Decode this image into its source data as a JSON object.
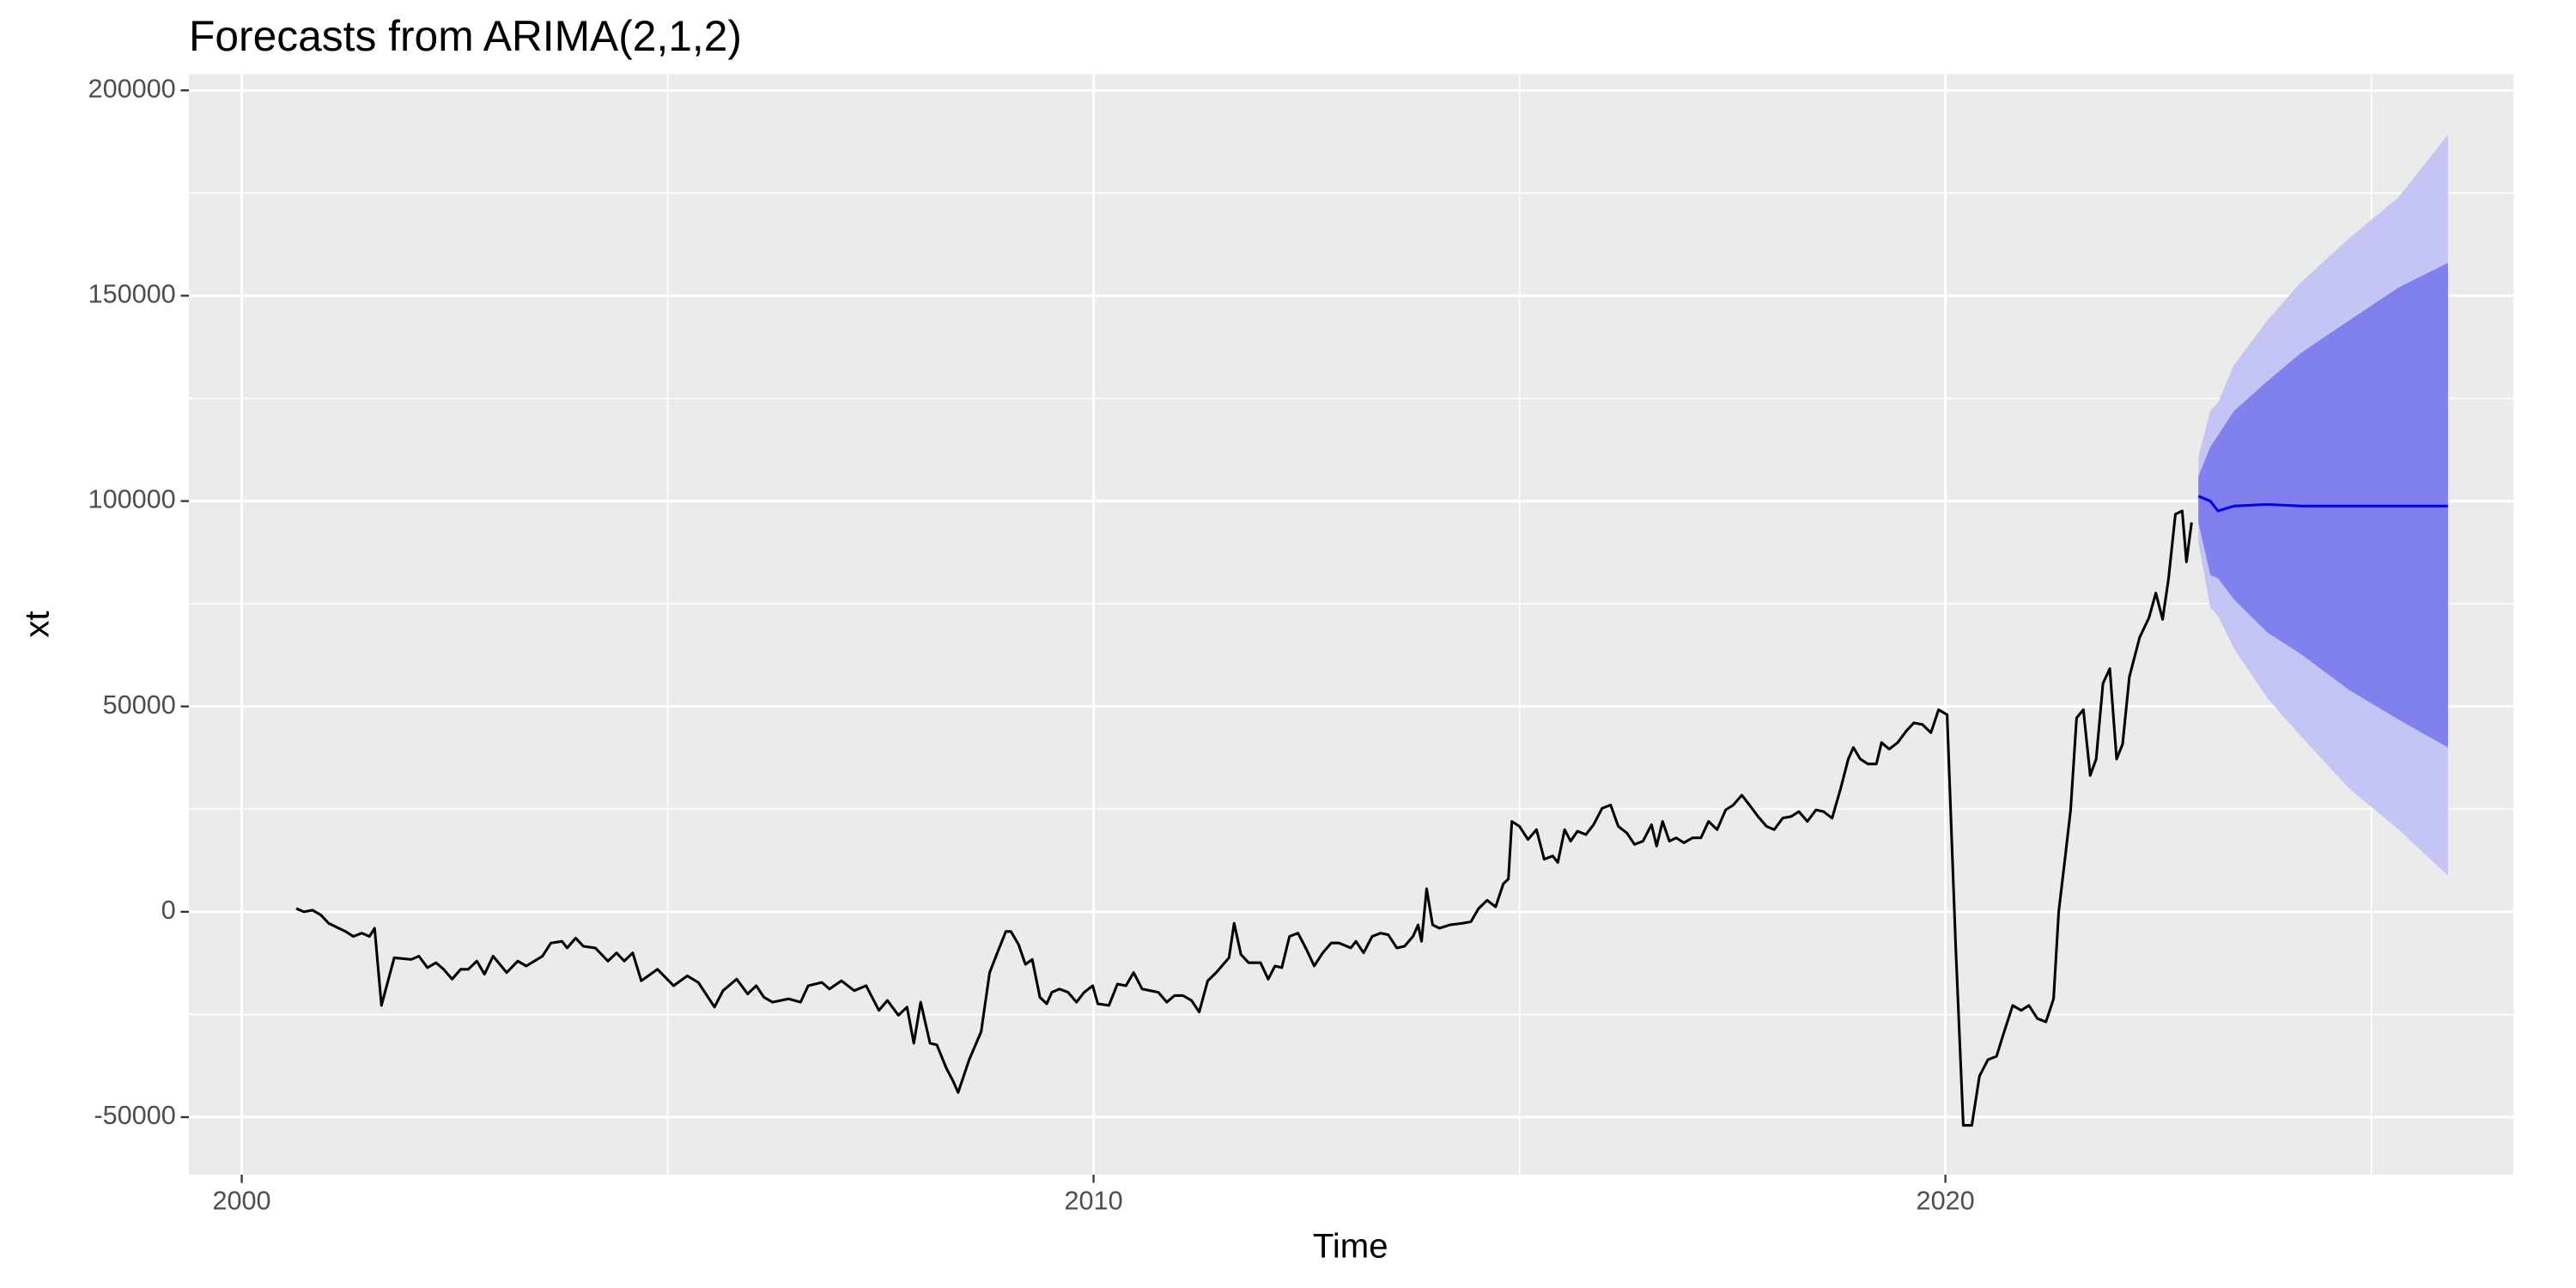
{
  "chart_data": {
    "type": "line",
    "title": "Forecasts from ARIMA(2,1,2)",
    "x_label": "Time",
    "y_label": "xt",
    "xlim": [
      1999.38,
      2026.67
    ],
    "ylim": [
      -64000,
      204000
    ],
    "xticks": [
      2000,
      2010,
      2020
    ],
    "yticks": [
      -50000,
      0,
      50000,
      100000,
      150000,
      200000
    ],
    "x_minor_grid": [
      2005,
      2015,
      2025
    ],
    "y_minor_grid": [
      -25000,
      25000,
      75000,
      125000,
      175000
    ],
    "grid": true,
    "background": "#ebebeb",
    "series": [
      {
        "color": "#000000",
        "x": [
          2000.64,
          2000.73,
          2000.83,
          2000.93,
          2001.02,
          2001.22,
          2001.31,
          2001.41,
          2001.5,
          2001.56,
          2001.64,
          2001.79,
          2001.99,
          2002.08,
          2002.18,
          2002.28,
          2002.37,
          2002.47,
          2002.57,
          2002.66,
          2002.76,
          2002.85,
          2002.95,
          2003.11,
          2003.24,
          2003.34,
          2003.53,
          2003.63,
          2003.76,
          2003.82,
          2003.92,
          2004.01,
          2004.15,
          2004.3,
          2004.4,
          2004.49,
          2004.59,
          2004.69,
          2004.88,
          2005.07,
          2005.23,
          2005.36,
          2005.55,
          2005.65,
          2005.81,
          2005.94,
          2006.04,
          2006.13,
          2006.23,
          2006.42,
          2006.56,
          2006.65,
          2006.81,
          2006.9,
          2007.04,
          2007.19,
          2007.33,
          2007.48,
          2007.58,
          2007.71,
          2007.81,
          2007.89,
          2007.97,
          2008.08,
          2008.16,
          2008.27,
          2008.35,
          2008.41,
          2008.54,
          2008.68,
          2008.78,
          2008.87,
          2008.97,
          2009.03,
          2009.12,
          2009.2,
          2009.28,
          2009.37,
          2009.45,
          2009.51,
          2009.6,
          2009.7,
          2009.8,
          2009.89,
          2009.99,
          2010.05,
          2010.18,
          2010.28,
          2010.38,
          2010.47,
          2010.57,
          2010.76,
          2010.86,
          2010.95,
          2011.05,
          2011.15,
          2011.24,
          2011.34,
          2011.44,
          2011.59,
          2011.65,
          2011.73,
          2011.82,
          2011.96,
          2012.05,
          2012.13,
          2012.21,
          2012.3,
          2012.4,
          2012.5,
          2012.59,
          2012.69,
          2012.79,
          2012.88,
          2013.02,
          2013.08,
          2013.17,
          2013.27,
          2013.37,
          2013.46,
          2013.56,
          2013.65,
          2013.75,
          2013.81,
          2013.85,
          2013.91,
          2013.98,
          2014.06,
          2014.18,
          2014.33,
          2014.43,
          2014.52,
          2014.62,
          2014.72,
          2014.81,
          2014.87,
          2014.91,
          2015.0,
          2015.1,
          2015.2,
          2015.29,
          2015.39,
          2015.45,
          2015.53,
          2015.6,
          2015.68,
          2015.78,
          2015.87,
          2015.97,
          2016.07,
          2016.16,
          2016.26,
          2016.35,
          2016.45,
          2016.55,
          2016.61,
          2016.68,
          2016.76,
          2016.84,
          2016.93,
          2017.03,
          2017.13,
          2017.22,
          2017.32,
          2017.42,
          2017.51,
          2017.61,
          2017.7,
          2017.8,
          2017.9,
          2017.99,
          2018.09,
          2018.19,
          2018.28,
          2018.38,
          2018.48,
          2018.57,
          2018.67,
          2018.77,
          2018.86,
          2018.92,
          2019.0,
          2019.09,
          2019.19,
          2019.25,
          2019.34,
          2019.44,
          2019.54,
          2019.63,
          2019.73,
          2019.83,
          2019.92,
          2020.02,
          2020.12,
          2020.21,
          2020.31,
          2020.4,
          2020.5,
          2020.6,
          2020.69,
          2020.79,
          2020.89,
          2020.98,
          2021.08,
          2021.18,
          2021.27,
          2021.33,
          2021.41,
          2021.47,
          2021.54,
          2021.62,
          2021.7,
          2021.77,
          2021.85,
          2021.93,
          2022.01,
          2022.08,
          2022.16,
          2022.28,
          2022.39,
          2022.47,
          2022.55,
          2022.62,
          2022.7,
          2022.78,
          2022.83,
          2022.89
        ],
        "values": [
          800,
          0,
          400,
          -800,
          -2800,
          -4800,
          -6000,
          -5200,
          -6000,
          -4000,
          -22800,
          -11200,
          -11600,
          -10800,
          -13600,
          -12400,
          -14000,
          -16400,
          -14000,
          -14000,
          -12000,
          -15200,
          -10800,
          -14800,
          -12000,
          -13200,
          -10800,
          -7600,
          -7200,
          -8800,
          -6400,
          -8400,
          -8800,
          -12000,
          -10000,
          -12000,
          -10000,
          -16800,
          -14000,
          -18000,
          -15600,
          -17200,
          -23200,
          -19200,
          -16400,
          -20000,
          -18000,
          -20800,
          -22000,
          -21200,
          -22000,
          -18000,
          -17200,
          -18800,
          -16800,
          -19200,
          -18000,
          -24000,
          -21600,
          -25200,
          -23200,
          -32000,
          -22000,
          -32000,
          -32400,
          -38000,
          -41200,
          -44000,
          -36000,
          -29200,
          -14800,
          -10000,
          -4800,
          -4800,
          -8000,
          -12800,
          -11600,
          -20800,
          -22400,
          -19600,
          -18800,
          -19600,
          -22000,
          -19600,
          -18000,
          -22400,
          -22800,
          -17600,
          -18000,
          -14800,
          -18800,
          -19600,
          -22000,
          -20400,
          -20400,
          -21600,
          -24400,
          -16800,
          -14800,
          -11200,
          -2800,
          -10400,
          -12400,
          -12400,
          -16400,
          -13200,
          -13600,
          -6000,
          -5200,
          -9200,
          -13200,
          -10000,
          -7600,
          -7600,
          -8800,
          -7200,
          -10000,
          -6000,
          -5200,
          -5600,
          -8800,
          -8400,
          -6000,
          -3200,
          -7200,
          5600,
          -3200,
          -4000,
          -3200,
          -2800,
          -2400,
          800,
          2800,
          1200,
          6800,
          8000,
          22000,
          20800,
          17600,
          20000,
          12800,
          13600,
          12000,
          20000,
          17200,
          19600,
          18800,
          21200,
          25200,
          26000,
          20800,
          19200,
          16400,
          17200,
          21200,
          16000,
          22000,
          17200,
          18000,
          16800,
          18000,
          18000,
          22000,
          20000,
          24800,
          26000,
          28400,
          26000,
          23200,
          20800,
          20000,
          22800,
          23200,
          24400,
          22000,
          24800,
          24400,
          22800,
          30000,
          37200,
          40000,
          37200,
          36000,
          36000,
          41200,
          39600,
          41200,
          44000,
          46000,
          45600,
          43600,
          49200,
          48000,
          -8000,
          -52000,
          -52000,
          -40000,
          -36000,
          -35200,
          -29200,
          -22800,
          -24000,
          -22800,
          -26000,
          -26800,
          -21200,
          0,
          14000,
          24800,
          47200,
          49200,
          33200,
          37200,
          55600,
          59200,
          37200,
          40800,
          57200,
          66800,
          71600,
          77600,
          71200,
          81200,
          96800,
          97600,
          85200,
          94800
        ]
      }
    ],
    "forecast": {
      "color": "#0000ff",
      "color80": "#8080ef",
      "color95": "#c5c5f5",
      "x": [
        2022.97,
        2023.11,
        2023.2,
        2023.39,
        2023.78,
        2024.17,
        2024.74,
        2025.32,
        2025.9
      ],
      "mean": [
        101200,
        100000,
        97600,
        98800,
        99200,
        98800,
        98800,
        98800,
        98800
      ],
      "hi80": [
        106000,
        113200,
        116000,
        122000,
        129200,
        136000,
        144000,
        152000,
        158000
      ],
      "lo80": [
        94800,
        82000,
        81200,
        76000,
        68000,
        62800,
        54000,
        46800,
        40000
      ],
      "hi95": [
        110800,
        122000,
        124000,
        133200,
        144000,
        153200,
        164000,
        174000,
        189200
      ],
      "lo95": [
        90000,
        74000,
        72000,
        64000,
        52000,
        42800,
        30000,
        20000,
        8800
      ]
    }
  }
}
